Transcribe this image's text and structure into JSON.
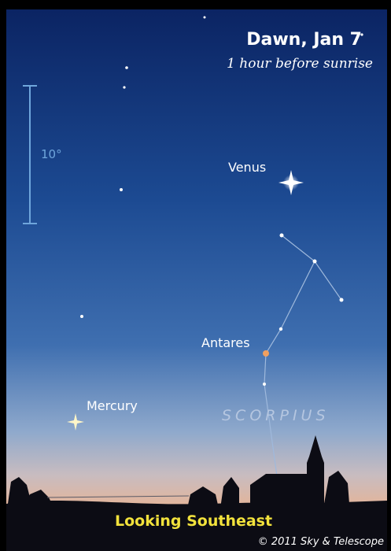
{
  "header": {
    "title": "Dawn, Jan 7",
    "subtitle": "1 hour before sunrise"
  },
  "scale": {
    "label": "10°"
  },
  "objects": [
    {
      "label": "Venus"
    },
    {
      "label": "Antares"
    },
    {
      "label": "Mercury"
    }
  ],
  "constellation": {
    "label": "SCORPIUS"
  },
  "footer": {
    "direction": "Looking Southeast",
    "credit": "© 2011 Sky & Telescope"
  }
}
